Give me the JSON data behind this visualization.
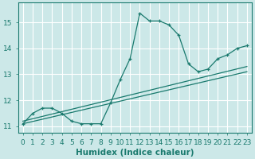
{
  "xlabel": "Humidex (Indice chaleur)",
  "bg_color": "#cce8e8",
  "line_color": "#1a7a6e",
  "grid_color": "#ffffff",
  "x_main": [
    0,
    1,
    2,
    3,
    4,
    5,
    6,
    7,
    8,
    9,
    10,
    11,
    12,
    13,
    14,
    15,
    16,
    17,
    18,
    19,
    20,
    21,
    22,
    23
  ],
  "y_main": [
    11.1,
    11.5,
    11.7,
    11.7,
    11.5,
    11.2,
    11.1,
    11.1,
    11.1,
    11.9,
    12.8,
    13.6,
    15.35,
    15.05,
    15.05,
    14.9,
    14.5,
    13.4,
    13.1,
    13.2,
    13.6,
    13.75,
    14.0,
    14.1
  ],
  "trend1_x": [
    0,
    23
  ],
  "trend1_y": [
    11.1,
    13.1
  ],
  "trend2_x": [
    0,
    23
  ],
  "trend2_y": [
    11.2,
    13.3
  ],
  "xlim": [
    -0.5,
    23.5
  ],
  "ylim": [
    10.75,
    15.75
  ],
  "yticks": [
    11,
    12,
    13,
    14,
    15
  ],
  "xticks": [
    0,
    1,
    2,
    3,
    4,
    5,
    6,
    7,
    8,
    9,
    10,
    11,
    12,
    13,
    14,
    15,
    16,
    17,
    18,
    19,
    20,
    21,
    22,
    23
  ],
  "tick_fontsize": 6.5,
  "xlabel_fontsize": 7.5
}
